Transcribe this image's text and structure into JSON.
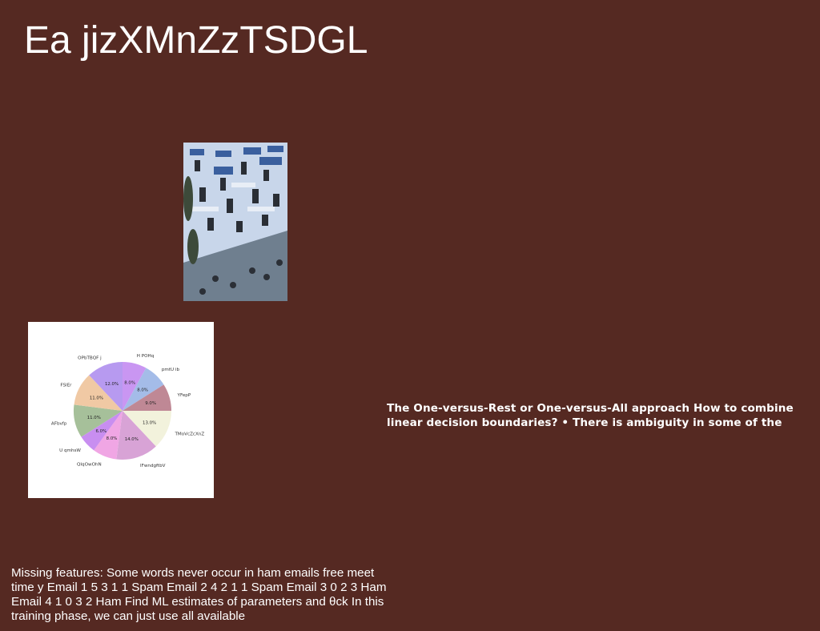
{
  "page": {
    "title": "Ea jizXMnZzTSDGL",
    "background": "#552922"
  },
  "photo": {
    "icon": "building-facade-photo"
  },
  "chart_data": {
    "type": "pie",
    "slices": [
      {
        "label": "H POHq",
        "value": 8.0,
        "color": "#c996f2"
      },
      {
        "label": "pmtU ib",
        "value": 8.0,
        "color": "#a4bce8"
      },
      {
        "label": "YFepP",
        "value": 9.0,
        "color": "#bf8895"
      },
      {
        "label": "TMoVcZcXnZ",
        "value": 13.0,
        "color": "#f2f2dc"
      },
      {
        "label": "lFwndgftbV",
        "value": 14.0,
        "color": "#d8a3d6"
      },
      {
        "label": "QIqOwOhN",
        "value": 8.0,
        "color": "#f0a6e4"
      },
      {
        "label": "U qmhsW",
        "value": 6.0,
        "color": "#c88ef0"
      },
      {
        "label": "AFbvfp",
        "value": 11.0,
        "color": "#a6c09a"
      },
      {
        "label": "FSlEr",
        "value": 11.0,
        "color": "#f0c9a4"
      },
      {
        "label": "OPbTBQF j",
        "value": 12.0,
        "color": "#b79af0"
      }
    ]
  },
  "side_text": "The One-versus-Rest or One-versus-All approach How to combine linear decision boundaries? • There is ambiguity in some of the",
  "bottom_text": "Missing features: Some words never occur in ham emails free meet time y Email 1 5 3 1 1 Spam Email 2 4 2 1 1 Spam Email 3 0 2 3 Ham Email 4 1 0 3 2 Ham Find ML estimates of parameters and θck In this training phase, we can just use all available"
}
